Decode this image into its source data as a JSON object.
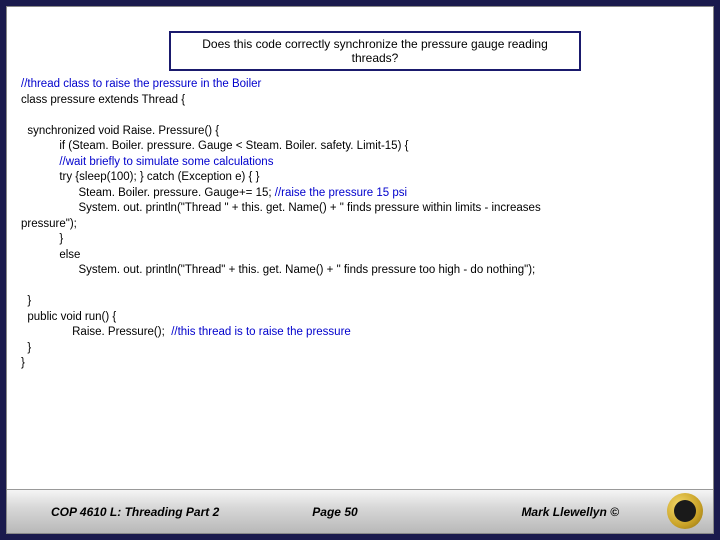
{
  "colors": {
    "page_bg": "#1a1a4d",
    "slide_bg": "#ffffff",
    "title_border": "#1a1a6d",
    "comment_color": "#0000cc",
    "text_color": "#000000",
    "footer_gradient_top": "#f5f5f5",
    "footer_gradient_bottom": "#b8b8b8",
    "logo_gold": "#c9a227"
  },
  "title": "Does this code correctly synchronize the pressure gauge reading threads?",
  "code": {
    "c1": "//thread class to raise the pressure in the Boiler",
    "l2": "class pressure extends Thread {",
    "l3": "  synchronized void Raise. Pressure() {",
    "l4a": "            if (Steam. Boiler. pressure. Gauge < Steam. Boiler. safety. Limit-15) {",
    "c5": "            //wait briefly to simulate some calculations",
    "l6": "            try {sleep(100); } catch (Exception e) { }",
    "l7a": "                  Steam. Boiler. pressure. Gauge+= 15; ",
    "c7b": "//raise the pressure 15 psi",
    "l8": "                  System. out. println(\"Thread \" + this. get. Name() + \" finds pressure within limits - increases",
    "l9": "pressure\");",
    "l10": "            }",
    "l11": "            else",
    "l12": "                  System. out. println(\"Thread\" + this. get. Name() + \" finds pressure too high - do nothing\");",
    "l13": "  }",
    "l14": "  public void run() {",
    "l15a": "                Raise. Pressure();  ",
    "c15b": "//this thread is to raise the pressure",
    "l16": "  }",
    "l17": "}"
  },
  "footer": {
    "left": "COP 4610 L: Threading Part 2",
    "center": "Page 50",
    "right": "Mark Llewellyn ©"
  }
}
